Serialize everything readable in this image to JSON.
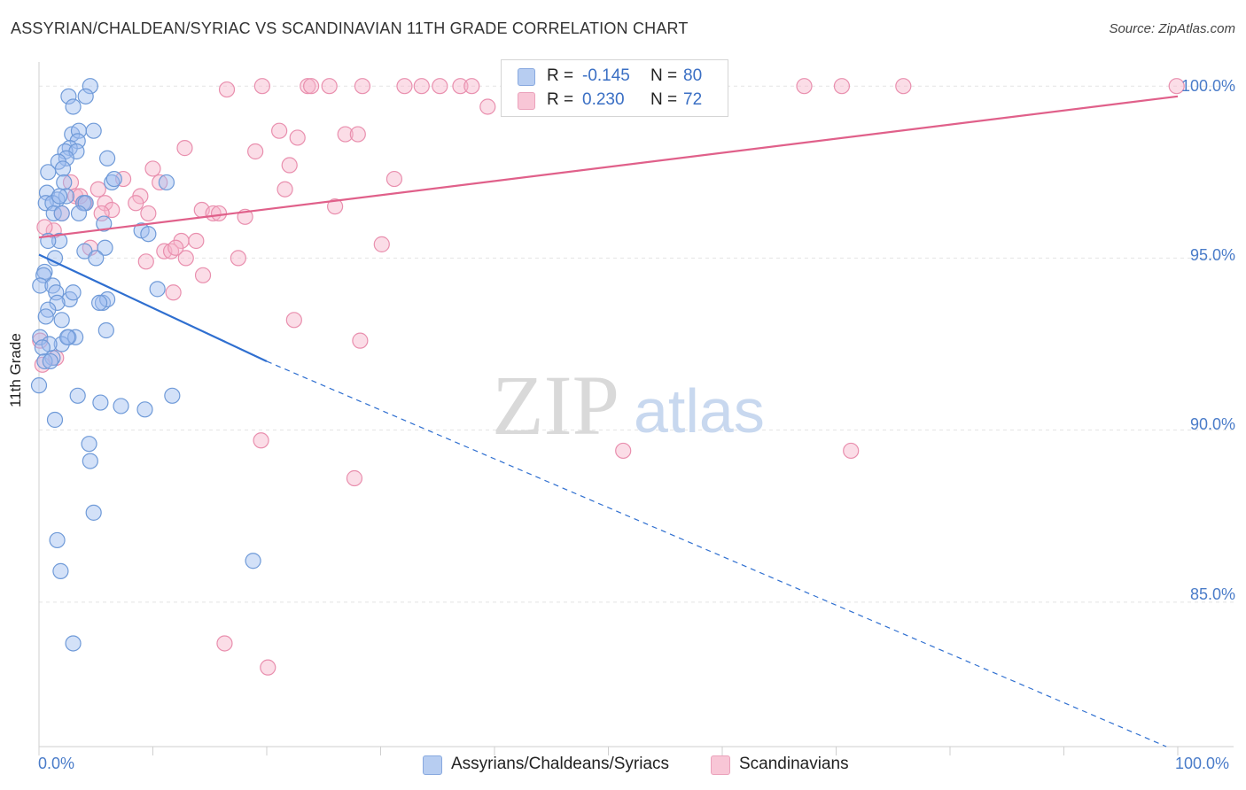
{
  "title": "ASSYRIAN/CHALDEAN/SYRIAC VS SCANDINAVIAN 11TH GRADE CORRELATION CHART",
  "source": "Source: ZipAtlas.com",
  "watermark": {
    "zip": "ZIP",
    "atlas": "atlas"
  },
  "legend": {
    "r_label": "R =",
    "n_label": "N =",
    "rows": [
      {
        "r": "-0.145",
        "n": "80"
      },
      {
        "r": "0.230",
        "n": "72"
      }
    ]
  },
  "colors": {
    "blue_fill": "#9dbdf0",
    "blue_stroke": "#6f9ad8",
    "blue_line": "#2f6fd0",
    "pink_fill": "#f6b4c9",
    "pink_stroke": "#e98fae",
    "pink_line": "#e0608a",
    "tick_text": "#4a7cc9",
    "grid": "#e4e4e4"
  },
  "chart_data": {
    "type": "scatter",
    "title": "ASSYRIAN/CHALDEAN/SYRIAC VS SCANDINAVIAN 11TH GRADE CORRELATION CHART",
    "xlabel": "",
    "ylabel": "11th Grade",
    "xlim": [
      0,
      100
    ],
    "ylim": [
      80.8,
      100.7
    ],
    "x_tick_labels": [
      {
        "value": 0,
        "label": "0.0%"
      },
      {
        "value": 100,
        "label": "100.0%"
      }
    ],
    "y_ticks": [
      {
        "value": 100,
        "label": "100.0%"
      },
      {
        "value": 95,
        "label": "95.0%"
      },
      {
        "value": 90,
        "label": "90.0%"
      },
      {
        "value": 85,
        "label": "85.0%"
      }
    ],
    "series": [
      {
        "name": "Assyrians/Chaldeans/Syriacs",
        "color": "blue",
        "trend": {
          "x0": 0,
          "y0": 95.1,
          "x1": 20,
          "y1": 92.0,
          "dash_to_x": 99,
          "dash_to_y": 80.8
        },
        "points": [
          [
            4.5,
            100.0
          ],
          [
            2.6,
            99.7
          ],
          [
            4.1,
            99.7
          ],
          [
            3.0,
            99.4
          ],
          [
            2.9,
            98.6
          ],
          [
            3.5,
            98.7
          ],
          [
            4.8,
            98.7
          ],
          [
            3.4,
            98.4
          ],
          [
            2.7,
            98.2
          ],
          [
            2.3,
            98.1
          ],
          [
            3.3,
            98.1
          ],
          [
            2.4,
            97.9
          ],
          [
            1.7,
            97.8
          ],
          [
            6.0,
            97.9
          ],
          [
            2.1,
            97.6
          ],
          [
            0.8,
            97.5
          ],
          [
            2.2,
            97.2
          ],
          [
            6.4,
            97.2
          ],
          [
            11.2,
            97.2
          ],
          [
            6.6,
            97.3
          ],
          [
            0.7,
            96.9
          ],
          [
            2.4,
            96.8
          ],
          [
            1.6,
            96.7
          ],
          [
            0.6,
            96.6
          ],
          [
            1.2,
            96.6
          ],
          [
            3.9,
            96.6
          ],
          [
            4.1,
            96.6
          ],
          [
            1.3,
            96.3
          ],
          [
            2.0,
            96.3
          ],
          [
            3.5,
            96.3
          ],
          [
            5.7,
            96.0
          ],
          [
            9.0,
            95.8
          ],
          [
            9.6,
            95.7
          ],
          [
            1.8,
            95.5
          ],
          [
            0.8,
            95.5
          ],
          [
            5.8,
            95.3
          ],
          [
            4.0,
            95.2
          ],
          [
            1.4,
            95.0
          ],
          [
            5.0,
            95.0
          ],
          [
            0.5,
            94.6
          ],
          [
            0.4,
            94.5
          ],
          [
            0.1,
            94.2
          ],
          [
            1.2,
            94.2
          ],
          [
            10.4,
            94.1
          ],
          [
            1.5,
            94.0
          ],
          [
            2.7,
            93.8
          ],
          [
            1.6,
            93.7
          ],
          [
            3.0,
            94.0
          ],
          [
            5.6,
            93.7
          ],
          [
            6.0,
            93.8
          ],
          [
            5.3,
            93.7
          ],
          [
            0.8,
            93.5
          ],
          [
            0.6,
            93.3
          ],
          [
            2.0,
            93.2
          ],
          [
            5.9,
            92.9
          ],
          [
            2.6,
            92.7
          ],
          [
            3.2,
            92.7
          ],
          [
            2.0,
            92.5
          ],
          [
            0.1,
            92.7
          ],
          [
            1.2,
            92.1
          ],
          [
            0.5,
            92.0
          ],
          [
            1.0,
            92.0
          ],
          [
            0.0,
            91.3
          ],
          [
            3.4,
            91.0
          ],
          [
            11.7,
            91.0
          ],
          [
            5.4,
            90.8
          ],
          [
            7.2,
            90.7
          ],
          [
            9.3,
            90.6
          ],
          [
            1.4,
            90.3
          ],
          [
            4.4,
            89.6
          ],
          [
            4.5,
            89.1
          ],
          [
            4.8,
            87.6
          ],
          [
            1.6,
            86.8
          ],
          [
            1.9,
            85.9
          ],
          [
            18.8,
            86.2
          ],
          [
            3.0,
            83.8
          ],
          [
            0.9,
            92.5
          ],
          [
            2.5,
            92.7
          ],
          [
            0.3,
            92.4
          ],
          [
            1.8,
            96.8
          ]
        ]
      },
      {
        "name": "Scandinavians",
        "color": "pink",
        "trend": {
          "x0": 0,
          "y0": 95.6,
          "x1": 100,
          "y1": 99.7
        },
        "points": [
          [
            16.5,
            99.9
          ],
          [
            19.6,
            100.0
          ],
          [
            23.6,
            100.0
          ],
          [
            23.9,
            100.0
          ],
          [
            25.5,
            100.0
          ],
          [
            28.4,
            100.0
          ],
          [
            32.1,
            100.0
          ],
          [
            33.6,
            100.0
          ],
          [
            35.2,
            100.0
          ],
          [
            37.0,
            100.0
          ],
          [
            38.0,
            100.0
          ],
          [
            45.1,
            100.0
          ],
          [
            47.0,
            100.0
          ],
          [
            67.2,
            100.0
          ],
          [
            70.5,
            100.0
          ],
          [
            75.9,
            100.0
          ],
          [
            99.9,
            100.0
          ],
          [
            39.4,
            99.4
          ],
          [
            21.1,
            98.7
          ],
          [
            22.7,
            98.5
          ],
          [
            26.9,
            98.6
          ],
          [
            28.0,
            98.6
          ],
          [
            12.8,
            98.2
          ],
          [
            19.0,
            98.1
          ],
          [
            22.0,
            97.7
          ],
          [
            10.0,
            97.6
          ],
          [
            7.4,
            97.3
          ],
          [
            31.2,
            97.3
          ],
          [
            10.6,
            97.2
          ],
          [
            2.8,
            97.2
          ],
          [
            21.6,
            97.0
          ],
          [
            8.9,
            96.8
          ],
          [
            3.2,
            96.8
          ],
          [
            4.0,
            96.6
          ],
          [
            5.8,
            96.6
          ],
          [
            8.5,
            96.6
          ],
          [
            6.4,
            96.4
          ],
          [
            26.0,
            96.5
          ],
          [
            14.3,
            96.4
          ],
          [
            15.3,
            96.3
          ],
          [
            15.8,
            96.3
          ],
          [
            18.1,
            96.2
          ],
          [
            5.5,
            96.3
          ],
          [
            9.6,
            96.3
          ],
          [
            2.0,
            96.3
          ],
          [
            1.3,
            95.8
          ],
          [
            12.5,
            95.5
          ],
          [
            13.8,
            95.5
          ],
          [
            30.1,
            95.4
          ],
          [
            4.5,
            95.3
          ],
          [
            11.0,
            95.2
          ],
          [
            11.6,
            95.2
          ],
          [
            12.9,
            95.0
          ],
          [
            17.5,
            95.0
          ],
          [
            9.4,
            94.9
          ],
          [
            14.4,
            94.5
          ],
          [
            11.8,
            94.0
          ],
          [
            22.4,
            93.2
          ],
          [
            28.2,
            92.6
          ],
          [
            0.1,
            92.6
          ],
          [
            0.3,
            91.9
          ],
          [
            19.5,
            89.7
          ],
          [
            51.3,
            89.4
          ],
          [
            71.3,
            89.4
          ],
          [
            27.7,
            88.6
          ],
          [
            16.3,
            83.8
          ],
          [
            20.1,
            83.1
          ],
          [
            1.5,
            92.1
          ],
          [
            0.5,
            95.9
          ],
          [
            3.6,
            96.8
          ],
          [
            5.2,
            97.0
          ],
          [
            12.0,
            95.3
          ]
        ]
      }
    ]
  },
  "bottom_legend": [
    {
      "label": "Assyrians/Chaldeans/Syriacs",
      "color": "blue"
    },
    {
      "label": "Scandinavians",
      "color": "pink"
    }
  ]
}
